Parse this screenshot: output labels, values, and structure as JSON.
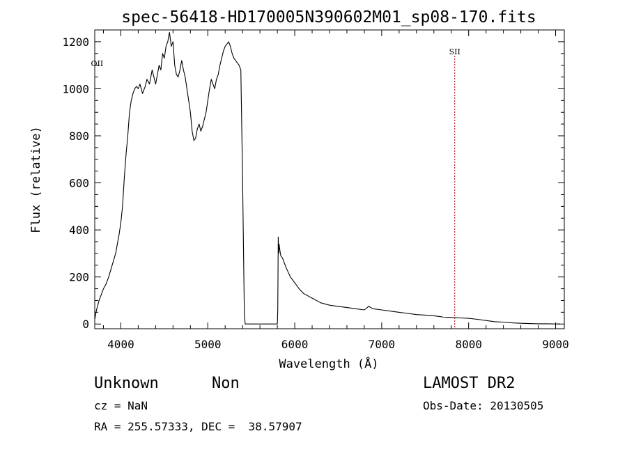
{
  "chart_data": {
    "type": "line",
    "title": "spec-56418-HD170005N390602M01_sp08-170.fits",
    "xlabel": "Wavelength (Å)",
    "ylabel": "Flux (relative)",
    "xlim": [
      3700,
      9100
    ],
    "ylim": [
      -20,
      1250
    ],
    "xticks": [
      4000,
      5000,
      6000,
      7000,
      8000,
      9000
    ],
    "yticks": [
      0,
      200,
      400,
      600,
      800,
      1000,
      1200
    ],
    "grid": false,
    "series": [
      {
        "x": [
          3700,
          3720,
          3750,
          3780,
          3800,
          3830,
          3860,
          3900,
          3940,
          3980,
          4000,
          4020,
          4040,
          4060,
          4080,
          4100,
          4120,
          4140,
          4160,
          4180,
          4200,
          4220,
          4250,
          4280,
          4300,
          4330,
          4360,
          4380,
          4400,
          4420,
          4440,
          4460,
          4480,
          4500,
          4520,
          4540,
          4560,
          4580,
          4600,
          4620,
          4640,
          4660,
          4680,
          4700,
          4720,
          4740,
          4760,
          4780,
          4800,
          4820,
          4840,
          4860,
          4880,
          4900,
          4920,
          4940,
          4960,
          4980,
          5000,
          5020,
          5040,
          5060,
          5080,
          5100,
          5120,
          5140,
          5160,
          5180,
          5200,
          5220,
          5240,
          5260,
          5280,
          5300,
          5320,
          5340,
          5360,
          5380,
          5400,
          5420,
          5430,
          5440,
          5450,
          5460,
          5470,
          5500,
          5600,
          5700,
          5790,
          5800,
          5805,
          5810,
          5815,
          5820,
          5830,
          5840,
          5860,
          5880,
          5900,
          5950,
          6000,
          6050,
          6100,
          6150,
          6200,
          6300,
          6400,
          6500,
          6600,
          6700,
          6800,
          6850,
          6900,
          7000,
          7100,
          7200,
          7300,
          7400,
          7500,
          7600,
          7700,
          7800,
          7900,
          8000,
          8100,
          8200,
          8300,
          8400,
          8500,
          8600,
          8700,
          8800,
          8900,
          9000,
          9050
        ],
        "y": [
          20,
          60,
          100,
          130,
          150,
          170,
          200,
          250,
          300,
          380,
          430,
          500,
          620,
          720,
          800,
          900,
          950,
          980,
          1000,
          1010,
          1000,
          1020,
          980,
          1010,
          1040,
          1020,
          1080,
          1050,
          1020,
          1060,
          1100,
          1080,
          1150,
          1130,
          1180,
          1200,
          1240,
          1180,
          1200,
          1100,
          1060,
          1050,
          1080,
          1120,
          1080,
          1050,
          1000,
          950,
          900,
          820,
          780,
          790,
          830,
          850,
          820,
          840,
          870,
          900,
          950,
          1000,
          1040,
          1020,
          1000,
          1040,
          1060,
          1100,
          1130,
          1160,
          1180,
          1190,
          1200,
          1180,
          1150,
          1130,
          1120,
          1110,
          1100,
          1080,
          620,
          50,
          0,
          0,
          0,
          0,
          0,
          0,
          0,
          0,
          0,
          0,
          60,
          370,
          300,
          340,
          310,
          290,
          280,
          260,
          240,
          200,
          175,
          150,
          130,
          120,
          110,
          90,
          80,
          75,
          70,
          65,
          60,
          75,
          65,
          60,
          55,
          50,
          45,
          40,
          38,
          35,
          30,
          28,
          26,
          24,
          20,
          15,
          10,
          8,
          5,
          3,
          2,
          1,
          1,
          0,
          0
        ]
      }
    ],
    "annotations": [
      {
        "label": "OII",
        "x": 3727
      },
      {
        "label": "SII",
        "x": 7840
      }
    ]
  },
  "info": {
    "class": "Unknown",
    "subclass": "Non",
    "survey": "LAMOST DR2",
    "cz": "cz = NaN",
    "obs_date": "Obs-Date: 20130505",
    "coords": "RA = 255.57333, DEC =  38.57907"
  },
  "colors": {
    "line": "#000000",
    "marker_line": "#b00000"
  }
}
